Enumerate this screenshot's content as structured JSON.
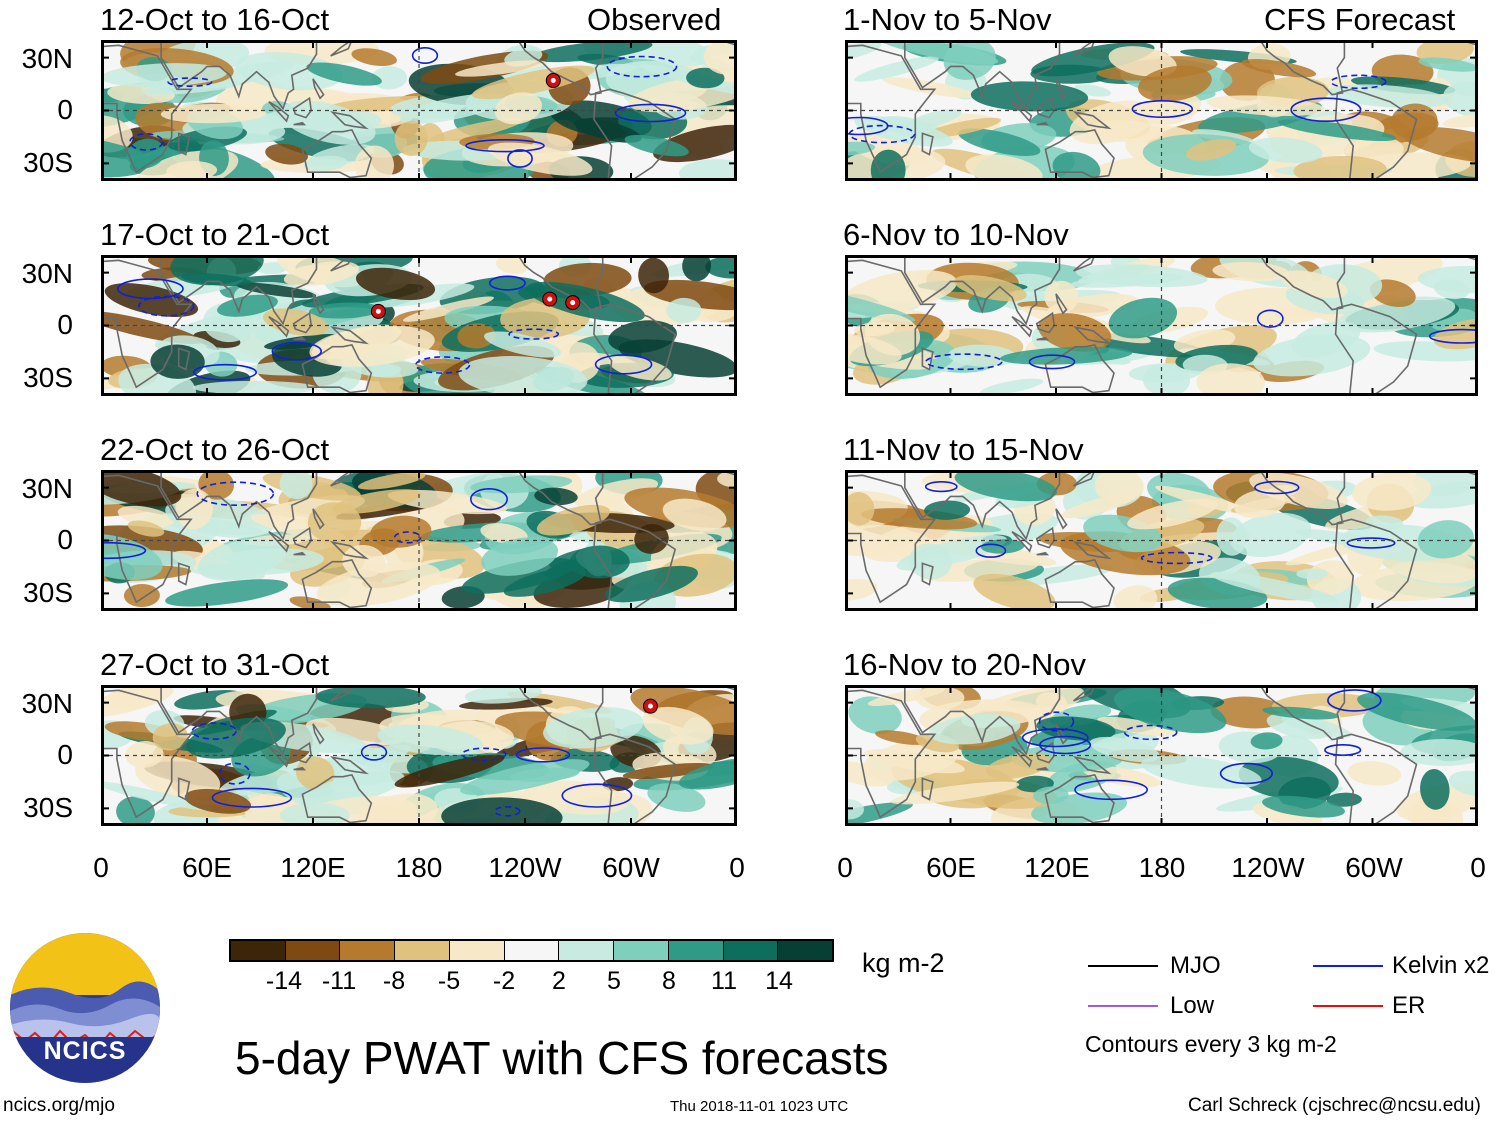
{
  "title": "5-day PWAT with CFS forecasts",
  "site": "ncics.org/mjo",
  "timestamp": "Thu 2018-11-01 1023 UTC",
  "author": "Carl Schreck (cjschrec@ncsu.edu)",
  "logo_text": "NCICS",
  "observed_label": "Observed",
  "forecast_label": "CFS Forecast",
  "colorbar": {
    "units": "kg m-2",
    "ticks": [
      "-14",
      "-11",
      "-8",
      "-5",
      "-2",
      "2",
      "5",
      "8",
      "11",
      "14"
    ],
    "colors": [
      "#3d2509",
      "#7f4a12",
      "#b57a2e",
      "#e0c27f",
      "#f7e9c8",
      "#f6f6f6",
      "#c7ebe1",
      "#7fcfbd",
      "#2f9b87",
      "#0e6e5e",
      "#083f35"
    ]
  },
  "legend": {
    "items": [
      {
        "label": "MJO",
        "color": "#000000"
      },
      {
        "label": "Kelvin x2",
        "color": "#1020d8"
      },
      {
        "label": "Low",
        "color": "#9a5fd8"
      },
      {
        "label": "ER",
        "color": "#e01010"
      }
    ],
    "note": "Contours every 3 kg m-2"
  },
  "chart_data": [
    {
      "type": "heatmap",
      "title": "12-Oct to 16-Oct",
      "source": "Observed"
    },
    {
      "type": "heatmap",
      "title": "17-Oct to 21-Oct",
      "source": "Observed"
    },
    {
      "type": "heatmap",
      "title": "22-Oct to 26-Oct",
      "source": "Observed"
    },
    {
      "type": "heatmap",
      "title": "27-Oct to 31-Oct",
      "source": "Observed"
    },
    {
      "type": "heatmap",
      "title": "1-Nov to 5-Nov",
      "source": "CFS Forecast"
    },
    {
      "type": "heatmap",
      "title": "6-Nov to 10-Nov",
      "source": "CFS Forecast"
    },
    {
      "type": "heatmap",
      "title": "11-Nov to 15-Nov",
      "source": "CFS Forecast"
    },
    {
      "type": "heatmap",
      "title": "16-Nov to 20-Nov",
      "source": "CFS Forecast"
    }
  ],
  "axes": {
    "y_ticks": [
      "30N",
      "0",
      "30S"
    ],
    "x_ticks": [
      "0",
      "60E",
      "120E",
      "180",
      "120W",
      "60W",
      "0"
    ],
    "y_range": [
      -40,
      40
    ],
    "x_range": [
      0,
      360
    ]
  }
}
